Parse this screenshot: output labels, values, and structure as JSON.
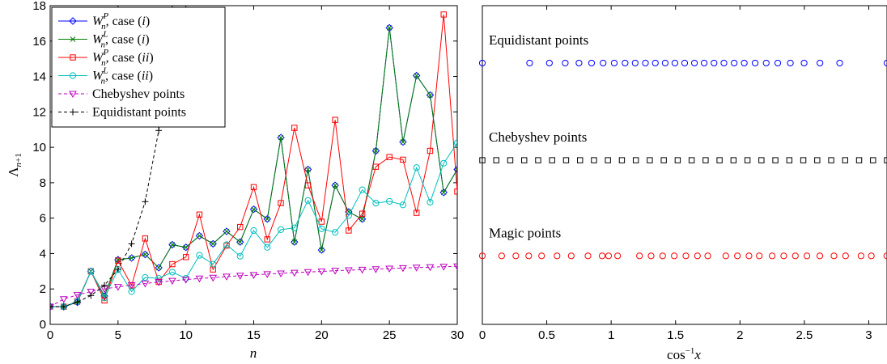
{
  "chart_data": [
    {
      "type": "line",
      "xlabel": "n",
      "ylabel": "Λ_{n+1}",
      "xlim": [
        0,
        30
      ],
      "ylim": [
        0,
        18
      ],
      "xticks": [
        "0",
        "5",
        "10",
        "15",
        "20",
        "25",
        "30"
      ],
      "yticks": [
        "0",
        "2",
        "4",
        "6",
        "8",
        "10",
        "12",
        "14",
        "16",
        "18"
      ],
      "grid": false,
      "legend_position": "top-left",
      "x": [
        0,
        1,
        2,
        3,
        4,
        5,
        6,
        7,
        8,
        9,
        10,
        11,
        12,
        13,
        14,
        15,
        16,
        17,
        18,
        19,
        20,
        21,
        22,
        23,
        24,
        25,
        26,
        27,
        28,
        29,
        30
      ],
      "series": [
        {
          "name": "W_n^P, case (i)",
          "legend_main": "W",
          "legend_sup": "P",
          "legend_sub": "n",
          "legend_case": "(i)",
          "color": "#0000ff",
          "marker": "diamond",
          "dash": "solid",
          "values": [
            1.0,
            1.0,
            1.25,
            3.0,
            1.6,
            3.65,
            3.75,
            3.95,
            3.2,
            4.5,
            4.35,
            5.0,
            4.55,
            5.25,
            4.65,
            6.5,
            5.95,
            10.55,
            4.65,
            8.75,
            4.2,
            7.85,
            6.35,
            5.95,
            9.8,
            16.75,
            10.3,
            14.05,
            12.95,
            7.45,
            8.75
          ]
        },
        {
          "name": "W_n^L, case (i)",
          "legend_main": "W",
          "legend_sup": "L",
          "legend_sub": "n",
          "legend_case": "(i)",
          "color": "#008000",
          "marker": "x",
          "dash": "solid",
          "values": [
            1.0,
            1.0,
            1.25,
            3.0,
            1.6,
            3.65,
            3.75,
            3.95,
            3.2,
            4.5,
            4.35,
            5.0,
            4.55,
            5.25,
            4.65,
            6.5,
            5.95,
            10.55,
            4.65,
            8.75,
            4.2,
            7.85,
            6.35,
            5.95,
            9.8,
            16.75,
            10.3,
            14.05,
            12.95,
            7.45,
            8.75
          ]
        },
        {
          "name": "W_n^P, case (ii)",
          "legend_main": "W",
          "legend_sup": "P",
          "legend_sub": "n",
          "legend_case": "(ii)",
          "color": "#ff0000",
          "marker": "square",
          "dash": "solid",
          "values": [
            1.0,
            1.0,
            1.3,
            3.0,
            1.35,
            3.6,
            2.2,
            4.85,
            2.4,
            3.4,
            3.8,
            6.2,
            3.1,
            4.45,
            5.5,
            7.75,
            4.8,
            6.85,
            11.1,
            7.85,
            5.8,
            11.55,
            5.3,
            6.25,
            8.9,
            9.45,
            9.3,
            6.3,
            9.8,
            17.5,
            7.5
          ]
        },
        {
          "name": "W_n^L, case (ii)",
          "legend_main": "W",
          "legend_sup": "L",
          "legend_sub": "n",
          "legend_case": "(ii)",
          "color": "#00bfbf",
          "marker": "circle",
          "dash": "solid",
          "values": [
            1.0,
            1.0,
            1.3,
            3.0,
            1.5,
            3.1,
            1.85,
            2.65,
            2.6,
            2.95,
            2.6,
            3.9,
            3.4,
            4.5,
            3.85,
            5.3,
            4.35,
            5.35,
            5.45,
            7.0,
            5.4,
            5.2,
            6.15,
            7.6,
            6.85,
            6.95,
            6.75,
            8.85,
            6.9,
            9.1,
            10.25
          ]
        },
        {
          "name": "Chebyshev points",
          "color": "#bf00bf",
          "marker": "triangle-down",
          "dash": "dashed",
          "values": [
            1.0,
            1.43,
            1.66,
            1.85,
            2.0,
            2.12,
            2.22,
            2.31,
            2.39,
            2.46,
            2.53,
            2.59,
            2.64,
            2.7,
            2.75,
            2.79,
            2.84,
            2.88,
            2.92,
            2.96,
            2.99,
            3.03,
            3.06,
            3.09,
            3.12,
            3.15,
            3.18,
            3.21,
            3.23,
            3.26,
            3.28
          ]
        },
        {
          "name": "Equidistant points",
          "color": "#000000",
          "marker": "plus",
          "dash": "dashed",
          "values": [
            1.0,
            1.0,
            1.25,
            1.63,
            2.21,
            3.11,
            4.55,
            6.93,
            10.95,
            17.85,
            null,
            null,
            null,
            null,
            null,
            null,
            null,
            null,
            null,
            null,
            null,
            null,
            null,
            null,
            null,
            null,
            null,
            null,
            null,
            null,
            null
          ]
        }
      ]
    },
    {
      "type": "scatter",
      "xlabel": "cos^{-1} x",
      "xlim": [
        0,
        3.1416
      ],
      "xticks": [
        "0",
        "0.5",
        "1",
        "1.5",
        "2",
        "2.5",
        "3"
      ],
      "yticks": [],
      "grid": false,
      "rows": [
        {
          "name": "Equidistant points",
          "color": "#0000ff",
          "marker": "circle",
          "level": 0.82,
          "x": [
            0,
            0.3672,
            0.5205,
            0.6435,
            0.7504,
            0.8481,
            0.9377,
            1.0239,
            1.1082,
            1.1864,
            1.2661,
            1.343,
            1.4195,
            1.4949,
            1.5708,
            1.6467,
            1.7221,
            1.7986,
            1.8755,
            1.9552,
            2.0334,
            2.1177,
            2.2039,
            2.2935,
            2.3912,
            2.4981,
            2.6211,
            2.7744,
            3.1416
          ]
        },
        {
          "name": "Chebyshev points",
          "color": "#000000",
          "marker": "square",
          "level": 0.515,
          "x": [
            0.0,
            0.1083,
            0.2167,
            0.325,
            0.4333,
            0.5417,
            0.65,
            0.7584,
            0.8667,
            0.975,
            1.0834,
            1.1917,
            1.3,
            1.4084,
            1.5167,
            1.625,
            1.7334,
            1.8417,
            1.95,
            2.0584,
            2.1667,
            2.275,
            2.3834,
            2.4917,
            2.6,
            2.7084,
            2.8167,
            2.925,
            3.0334,
            3.1416
          ]
        },
        {
          "name": "Magic points",
          "color": "#ff0000",
          "marker": "circle",
          "level": 0.215,
          "x": [
            0.0,
            0.15,
            0.26,
            0.36,
            0.46,
            0.58,
            0.69,
            0.82,
            0.93,
            0.98,
            1.05,
            1.22,
            1.31,
            1.4,
            1.49,
            1.58,
            1.67,
            1.75,
            1.89,
            1.98,
            2.07,
            2.15,
            2.25,
            2.34,
            2.43,
            2.52,
            2.62,
            2.73,
            2.82,
            2.94,
            3.02,
            3.14
          ]
        }
      ]
    }
  ]
}
